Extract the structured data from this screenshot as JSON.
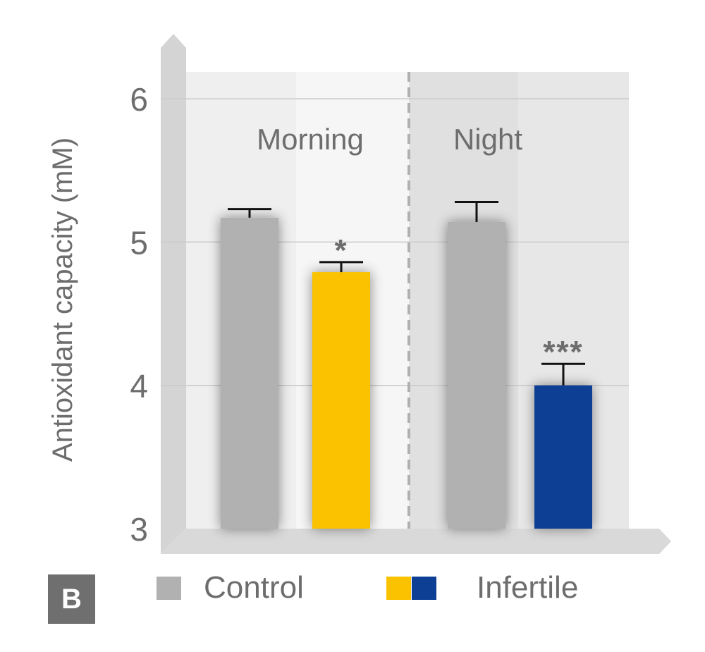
{
  "panel_label": "B",
  "colors": {
    "control": "#b1b1b1",
    "infertile_morning": "#fbc200",
    "infertile_night": "#0d4094",
    "text": "#6d6d6d"
  },
  "chart_data": {
    "type": "bar",
    "ylabel": "Antioxidant capacity (mM)",
    "ylim": [
      3,
      6.2
    ],
    "yticks": [
      3,
      4,
      5,
      6
    ],
    "grid": true,
    "groups": [
      {
        "label": "Morning",
        "bars": [
          {
            "series": "Control",
            "value": 5.17,
            "error": 0.06,
            "significance": "",
            "color": "#b1b1b1"
          },
          {
            "series": "Infertile",
            "value": 4.79,
            "error": 0.07,
            "significance": "*",
            "color": "#fbc200"
          }
        ]
      },
      {
        "label": "Night",
        "bars": [
          {
            "series": "Control",
            "value": 5.14,
            "error": 0.14,
            "significance": "",
            "color": "#b1b1b1"
          },
          {
            "series": "Infertile",
            "value": 4.0,
            "error": 0.15,
            "significance": "***",
            "color": "#0d4094"
          }
        ]
      }
    ],
    "legend": {
      "position": "bottom",
      "entries": [
        {
          "label": "Control",
          "colors": [
            "#b1b1b1"
          ]
        },
        {
          "label": "Infertile",
          "colors": [
            "#fbc200",
            "#0d4094"
          ]
        }
      ]
    }
  }
}
